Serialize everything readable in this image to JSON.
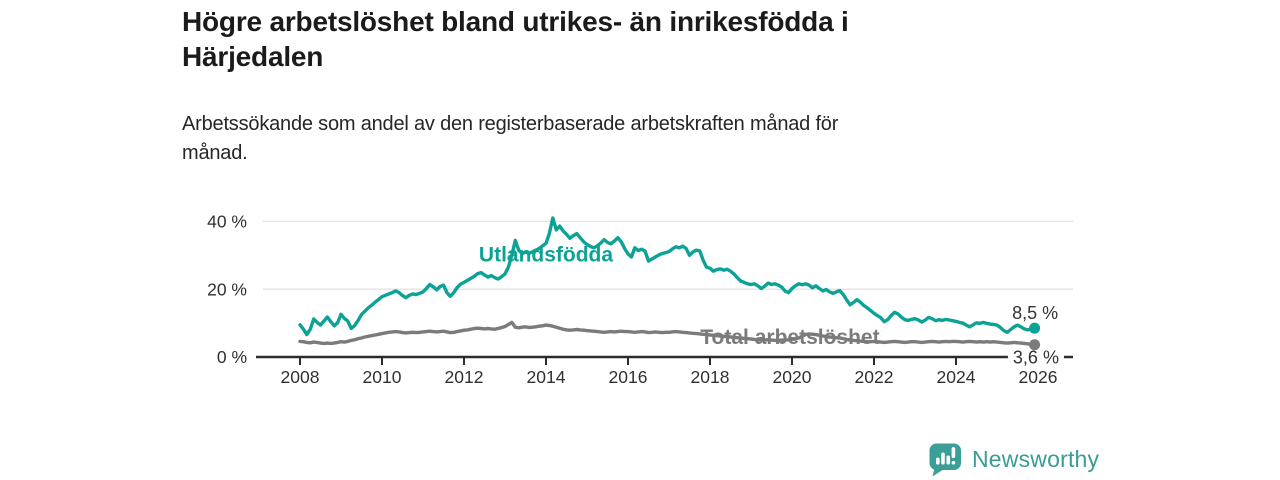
{
  "header": {
    "title_lines": [
      "Högre arbetslöshet bland utrikes- än inrikesfödda i",
      "Härjedalen"
    ],
    "subtitle_lines": [
      "Arbetssökande som andel av den registerbaserade arbetskraften månad för",
      "månad."
    ]
  },
  "footer": {
    "brand": "Newsworthy"
  },
  "colors": {
    "accent_teal": "#0ca295",
    "logo_teal": "#3b9e97",
    "series_gray": "#7b7b7b",
    "title_text": "#1b1b1b",
    "axis_text": "#303030",
    "grid": "#e3e3e3",
    "axis": "#2c2c2c",
    "background": "#ffffff"
  },
  "chart_data": {
    "type": "line",
    "title": "Högre arbetslöshet bland utrikes- än inrikesfödda i Härjedalen",
    "subtitle": "Arbetssökande som andel av den registerbaserade arbetskraften månad för månad.",
    "xlabel": "",
    "ylabel": "",
    "unit": "%",
    "x_start": 2008,
    "x_step_months": 1,
    "xlim": [
      2006.9,
      2026.85
    ],
    "ylim": [
      0,
      44
    ],
    "grid": "horizontal",
    "legend_position": "inline-labels",
    "xticks": [
      {
        "value": 2008,
        "label": "2008"
      },
      {
        "value": 2010,
        "label": "2010"
      },
      {
        "value": 2012,
        "label": "2012"
      },
      {
        "value": 2014,
        "label": "2014"
      },
      {
        "value": 2016,
        "label": "2016"
      },
      {
        "value": 2018,
        "label": "2018"
      },
      {
        "value": 2020,
        "label": "2020"
      },
      {
        "value": 2022,
        "label": "2022"
      },
      {
        "value": 2024,
        "label": "2024"
      },
      {
        "value": 2026,
        "label": "2026"
      }
    ],
    "yticks": [
      {
        "value": 0,
        "label": "0 %"
      },
      {
        "value": 20,
        "label": "20 %"
      },
      {
        "value": 40,
        "label": "40 %"
      }
    ],
    "style": {
      "grid": "#e3e3e3",
      "axis": "#2c2c2c",
      "axis_text": "#303030"
    },
    "series": [
      {
        "name": "Utlandsfödda",
        "slug": "utlandsfodda",
        "color": "#0ca295",
        "end_dot": true,
        "values": [
          9.5,
          8.2,
          6.6,
          8.2,
          11.2,
          10.2,
          9.4,
          10.6,
          11.8,
          10.4,
          9.2,
          10.1,
          12.6,
          11.4,
          10.6,
          8.4,
          9.3,
          10.8,
          12.5,
          13.5,
          14.5,
          15.3,
          16.2,
          17.0,
          17.8,
          18.2,
          18.6,
          19.0,
          19.5,
          19.0,
          18.1,
          17.5,
          18.2,
          18.6,
          18.4,
          18.8,
          19.2,
          20.2,
          21.4,
          20.7,
          19.8,
          20.8,
          21.2,
          19.0,
          17.9,
          19.0,
          20.5,
          21.5,
          22.0,
          22.6,
          23.2,
          23.8,
          24.6,
          24.9,
          24.2,
          23.6,
          24.0,
          23.4,
          23.0,
          23.7,
          24.5,
          26.5,
          30.0,
          34.4,
          31.5,
          30.5,
          31.0,
          30.6,
          31.0,
          31.5,
          32.0,
          32.8,
          33.5,
          36.5,
          41.0,
          37.5,
          38.6,
          37.2,
          36.2,
          35.0,
          35.8,
          36.4,
          35.2,
          34.0,
          33.2,
          32.6,
          32.2,
          32.8,
          33.6,
          34.6,
          33.8,
          33.4,
          34.2,
          35.2,
          34.0,
          32.0,
          30.4,
          29.5,
          32.2,
          31.4,
          31.8,
          31.2,
          28.3,
          28.9,
          29.5,
          30.1,
          30.5,
          30.8,
          31.1,
          31.9,
          32.5,
          32.2,
          32.7,
          32.0,
          30.0,
          31.0,
          31.5,
          31.3,
          28.5,
          26.5,
          26.2,
          25.3,
          25.8,
          26.0,
          25.6,
          25.9,
          25.3,
          24.5,
          23.4,
          22.4,
          22.0,
          21.6,
          21.4,
          21.6,
          21.0,
          20.2,
          20.9,
          21.8,
          21.4,
          21.6,
          21.2,
          20.6,
          19.4,
          19.0,
          20.2,
          21.0,
          21.6,
          21.3,
          21.6,
          21.2,
          20.4,
          21.0,
          20.2,
          19.5,
          19.9,
          19.2,
          18.8,
          19.2,
          19.6,
          18.4,
          16.8,
          15.4,
          16.1,
          16.9,
          16.2,
          15.2,
          14.5,
          13.7,
          12.9,
          12.2,
          11.6,
          10.4,
          11.0,
          12.2,
          13.2,
          12.7,
          11.8,
          11.0,
          10.8,
          11.1,
          11.3,
          10.9,
          10.3,
          10.9,
          11.7,
          11.3,
          10.7,
          11.0,
          10.8,
          11.1,
          10.9,
          10.7,
          10.5,
          10.2,
          10.0,
          9.4,
          8.9,
          9.5,
          10.1,
          9.9,
          10.2,
          9.9,
          9.7,
          9.6,
          9.4,
          8.7,
          7.8,
          7.3,
          8.1,
          8.9,
          9.4,
          8.9,
          8.3,
          8.0,
          8.2,
          8.5
        ]
      },
      {
        "name": "Total arbetslöshet",
        "slug": "total-arbetsloshet",
        "color": "#7b7b7b",
        "end_dot": true,
        "values": [
          4.6,
          4.5,
          4.3,
          4.2,
          4.4,
          4.3,
          4.1,
          4.0,
          4.1,
          4.0,
          4.1,
          4.3,
          4.5,
          4.4,
          4.6,
          4.9,
          5.1,
          5.4,
          5.6,
          5.9,
          6.1,
          6.3,
          6.5,
          6.7,
          6.9,
          7.1,
          7.3,
          7.4,
          7.5,
          7.4,
          7.2,
          7.1,
          7.2,
          7.3,
          7.2,
          7.3,
          7.4,
          7.5,
          7.6,
          7.5,
          7.4,
          7.5,
          7.6,
          7.4,
          7.2,
          7.3,
          7.5,
          7.7,
          7.9,
          8.0,
          8.2,
          8.4,
          8.5,
          8.4,
          8.3,
          8.4,
          8.3,
          8.2,
          8.4,
          8.7,
          9.0,
          9.6,
          10.2,
          8.8,
          8.6,
          8.8,
          8.9,
          8.7,
          8.8,
          8.9,
          9.1,
          9.2,
          9.4,
          9.3,
          9.1,
          8.8,
          8.5,
          8.2,
          8.0,
          7.9,
          8.0,
          8.1,
          8.0,
          7.9,
          7.8,
          7.7,
          7.6,
          7.5,
          7.4,
          7.3,
          7.4,
          7.5,
          7.4,
          7.5,
          7.6,
          7.5,
          7.5,
          7.4,
          7.3,
          7.4,
          7.5,
          7.4,
          7.2,
          7.3,
          7.4,
          7.3,
          7.2,
          7.3,
          7.3,
          7.4,
          7.5,
          7.4,
          7.3,
          7.2,
          7.1,
          7.0,
          6.9,
          6.8,
          6.7,
          6.6,
          6.5,
          6.4,
          6.3,
          6.2,
          6.1,
          6.0,
          5.9,
          5.8,
          5.7,
          5.6,
          5.5,
          5.4,
          5.3,
          5.2,
          5.1,
          5.0,
          5.0,
          5.1,
          5.0,
          4.9,
          4.9,
          5.0,
          5.0,
          5.1,
          5.2,
          5.3,
          5.6,
          6.2,
          6.6,
          6.8,
          6.7,
          6.6,
          6.4,
          6.2,
          6.0,
          5.9,
          5.8,
          5.7,
          5.6,
          5.4,
          5.2,
          5.0,
          4.9,
          4.8,
          4.7,
          4.6,
          4.5,
          4.5,
          4.6,
          4.5,
          4.4,
          4.3,
          4.4,
          4.5,
          4.6,
          4.5,
          4.4,
          4.3,
          4.4,
          4.5,
          4.5,
          4.4,
          4.3,
          4.4,
          4.5,
          4.6,
          4.5,
          4.4,
          4.5,
          4.6,
          4.5,
          4.6,
          4.6,
          4.5,
          4.4,
          4.5,
          4.6,
          4.5,
          4.4,
          4.5,
          4.4,
          4.5,
          4.4,
          4.5,
          4.4,
          4.3,
          4.2,
          4.1,
          4.2,
          4.3,
          4.2,
          4.1,
          4.0,
          3.9,
          3.7,
          3.6
        ]
      }
    ],
    "annotations": [
      {
        "slug": "utlandsfodda-label",
        "text": "Utlandsfödda",
        "x": 2014.0,
        "y": 30.3,
        "dy": 7,
        "color": "#0ca295",
        "weight": "700",
        "size": 21,
        "bg": false
      },
      {
        "slug": "total-arbetsloshet-label",
        "text": "Total arbetslöshet",
        "x": 2019.95,
        "y": 5.9,
        "dy": 7,
        "color": "#7b7b7b",
        "weight": "700",
        "size": 21,
        "bg": false
      },
      {
        "slug": "utlandsfodda-end-value",
        "text": "8,5 %",
        "x": 2025.93,
        "y": 13.0,
        "dy": 6,
        "color": "#333333",
        "weight": "400",
        "size": 18,
        "bg": false
      },
      {
        "slug": "total-arbetsloshet-end-value",
        "text": "3,6 %",
        "x": 2025.95,
        "y": 0,
        "dy": 6.5,
        "color": "#333333",
        "weight": "400",
        "size": 18,
        "bg": true
      }
    ]
  }
}
